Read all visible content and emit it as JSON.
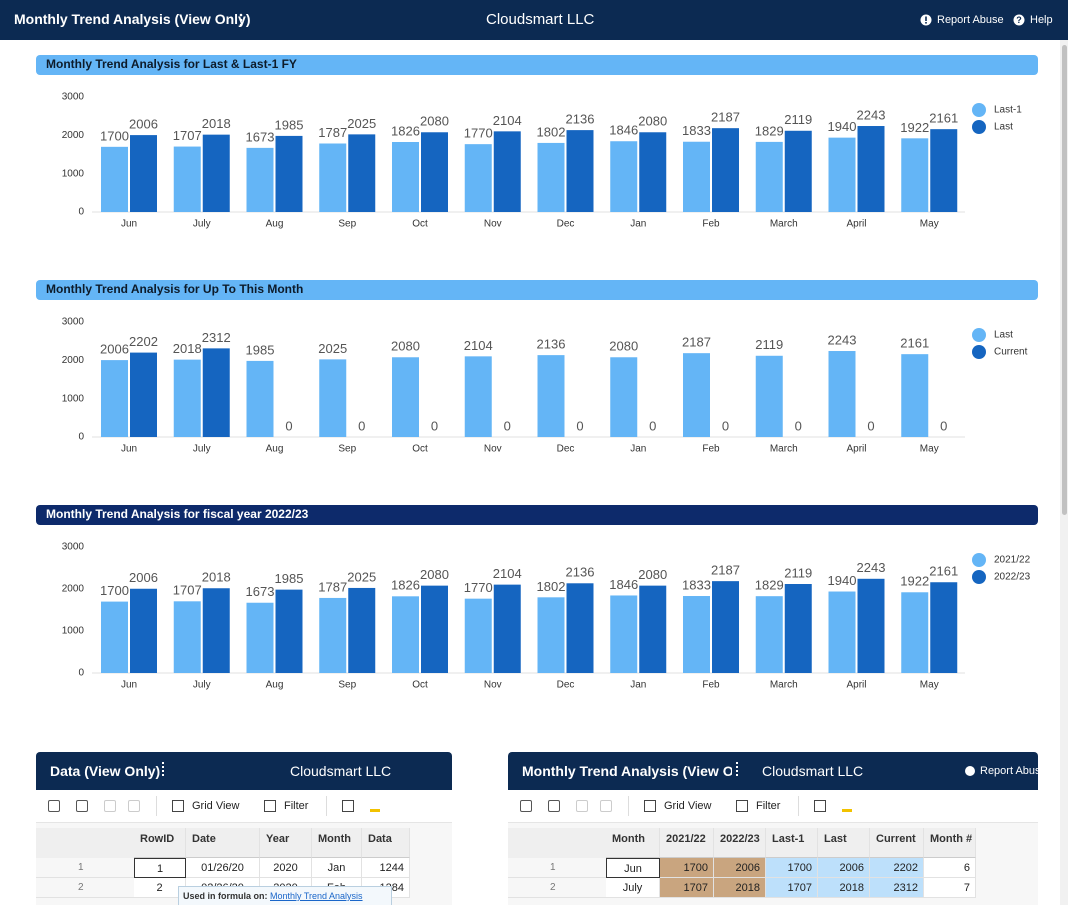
{
  "header": {
    "title": "Monthly Trend Analysis (View Only)",
    "company": "Cloudsmart LLC",
    "report_abuse": "Report Abuse",
    "help": "Help"
  },
  "chart_data": [
    {
      "type": "bar",
      "title": "Monthly Trend Analysis for Last & Last-1 FY",
      "title_color": "#64b5f6",
      "title_text_color": "#0d1b2a",
      "categories": [
        "Jun",
        "July",
        "Aug",
        "Sep",
        "Oct",
        "Nov",
        "Dec",
        "Jan",
        "Feb",
        "March",
        "April",
        "May"
      ],
      "series": [
        {
          "name": "Last-1",
          "color": "#64b5f6",
          "values": [
            1700,
            1707,
            1673,
            1787,
            1826,
            1770,
            1802,
            1846,
            1833,
            1829,
            1940,
            1922
          ]
        },
        {
          "name": "Last",
          "color": "#1565c0",
          "values": [
            2006,
            2018,
            1985,
            2025,
            2080,
            2104,
            2136,
            2080,
            2187,
            2119,
            2243,
            2161
          ]
        }
      ],
      "ylim": [
        0,
        3000
      ],
      "yticks": [
        0,
        1000,
        2000,
        3000
      ],
      "grid": false,
      "legend": "right"
    },
    {
      "type": "bar",
      "title": "Monthly Trend Analysis for Up To This Month",
      "title_color": "#64b5f6",
      "title_text_color": "#0d1b2a",
      "categories": [
        "Jun",
        "July",
        "Aug",
        "Sep",
        "Oct",
        "Nov",
        "Dec",
        "Jan",
        "Feb",
        "March",
        "April",
        "May"
      ],
      "series": [
        {
          "name": "Last",
          "color": "#64b5f6",
          "values": [
            2006,
            2018,
            1985,
            2025,
            2080,
            2104,
            2136,
            2080,
            2187,
            2119,
            2243,
            2161
          ]
        },
        {
          "name": "Current",
          "color": "#1565c0",
          "values": [
            2202,
            2312,
            0,
            0,
            0,
            0,
            0,
            0,
            0,
            0,
            0,
            0
          ]
        }
      ],
      "ylim": [
        0,
        3000
      ],
      "yticks": [
        0,
        1000,
        2000,
        3000
      ],
      "grid": false,
      "legend": "right"
    },
    {
      "type": "bar",
      "title": "Monthly Trend Analysis for fiscal year 2022/23",
      "title_color": "#0d2a6b",
      "title_text_color": "#ffffff",
      "categories": [
        "Jun",
        "July",
        "Aug",
        "Sep",
        "Oct",
        "Nov",
        "Dec",
        "Jan",
        "Feb",
        "March",
        "April",
        "May"
      ],
      "series": [
        {
          "name": "2021/22",
          "color": "#64b5f6",
          "values": [
            1700,
            1707,
            1673,
            1787,
            1826,
            1770,
            1802,
            1846,
            1833,
            1829,
            1940,
            1922
          ]
        },
        {
          "name": "2022/23",
          "color": "#1565c0",
          "values": [
            2006,
            2018,
            1985,
            2025,
            2080,
            2104,
            2136,
            2080,
            2187,
            2119,
            2243,
            2161
          ]
        }
      ],
      "ylim": [
        0,
        3000
      ],
      "yticks": [
        0,
        1000,
        2000,
        3000
      ],
      "grid": false,
      "legend": "right"
    }
  ],
  "panels": [
    {
      "title": "Data (View Only)",
      "company": "Cloudsmart LLC",
      "toolbar": [
        "Grid View",
        "Filter"
      ],
      "columns": [
        "RowID",
        "Date",
        "Year",
        "Month",
        "Data"
      ],
      "rows": [
        {
          "number": 1,
          "cells": [
            1,
            "01/26/20",
            2020,
            "Jan",
            1244
          ]
        },
        {
          "number": 2,
          "cells": [
            2,
            "02/26/20",
            2020,
            "Feb",
            1284
          ]
        }
      ],
      "tooltip": {
        "label": "Used in formula on:",
        "link": "Monthly Trend Analysis"
      }
    },
    {
      "title": "Monthly Trend Analysis (View Only)",
      "company": "Cloudsmart LLC",
      "report_abuse": "Report Abuse",
      "toolbar": [
        "Grid View",
        "Filter"
      ],
      "columns": [
        "Month",
        "2021/22",
        "2022/23",
        "Last-1",
        "Last",
        "Current",
        "Month #"
      ],
      "rows": [
        {
          "number": 1,
          "cells": [
            "Jun",
            1700,
            2006,
            1700,
            2006,
            2202,
            6
          ]
        },
        {
          "number": 2,
          "cells": [
            "July",
            1707,
            2018,
            1707,
            2018,
            2312,
            7
          ]
        }
      ]
    }
  ]
}
